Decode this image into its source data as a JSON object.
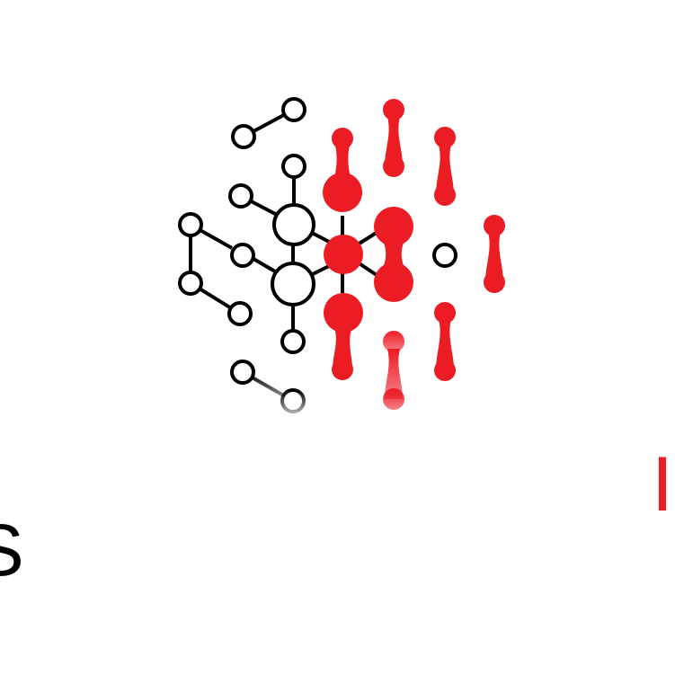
{
  "logo": {
    "icon": "molecule-network-icon",
    "colors": {
      "accent": "#ec1c24",
      "ink": "#000000",
      "background": "#ffffff"
    }
  },
  "text_fragments": {
    "left": "S",
    "right": "I"
  }
}
